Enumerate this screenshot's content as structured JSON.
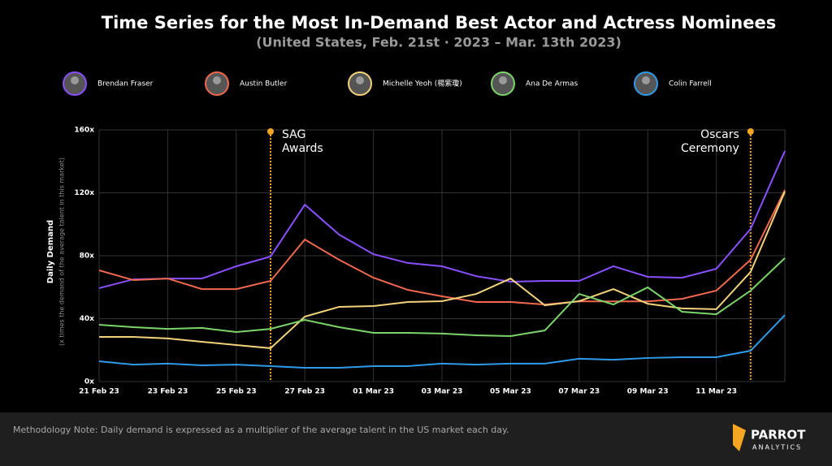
{
  "chart_data": {
    "type": "line",
    "title": "Time Series for the Most In-Demand Best Actor and Actress Nominees",
    "subtitle": "(United States, Feb. 21st · 2023 – Mar. 13th 2023)",
    "y_axis_label": "Daily Demand",
    "y_axis_sublabel": "(x times the demand of the average talent in this market)",
    "note": "Methodology Note: Daily demand is expressed as a multiplier of the average talent in the US market each day.",
    "brand": [
      "PARROT",
      "ANALYTICS"
    ],
    "categories": [
      "21 Feb 23",
      null,
      "23 Feb 23",
      null,
      "25 Feb 23",
      null,
      "27 Feb 23",
      null,
      "01 Mar 23",
      null,
      "03 Mar 23",
      null,
      "05 Mar 23",
      null,
      "07 Mar 23",
      null,
      "09 Mar 23",
      null,
      "11 Mar 23",
      null,
      null
    ],
    "ylim": [
      0,
      160
    ],
    "yticks": [
      {
        "value": 0,
        "label": "0x"
      },
      {
        "value": 40,
        "label": "40x"
      },
      {
        "value": 80,
        "label": "80x"
      },
      {
        "value": 120,
        "label": "120x"
      },
      {
        "value": 160,
        "label": "160x"
      }
    ],
    "grid": true,
    "annotations": [
      {
        "lines": [
          "SAG",
          "Awards"
        ],
        "x": 5,
        "align": "left"
      },
      {
        "lines": [
          "Oscars",
          "Ceremony"
        ],
        "x": 19,
        "align": "right"
      }
    ],
    "annotation_color": "#f5a623",
    "series": [
      {
        "name": "Brendan Fraser",
        "color": "#8a4fff",
        "values": [
          59.4,
          65,
          65.5,
          65.5,
          73.3,
          79.5,
          112.5,
          93.4,
          81,
          75.4,
          73.3,
          67,
          63.5,
          64,
          64,
          73.3,
          66.6,
          66,
          71.7,
          97,
          146.6
        ]
      },
      {
        "name": "Austin Butler",
        "color": "#f0694e",
        "values": [
          70.7,
          64.5,
          65.5,
          58.8,
          58.8,
          64,
          90.3,
          77.4,
          66,
          58.3,
          54.2,
          50.6,
          50.6,
          49,
          51,
          51,
          51,
          52.6,
          57.8,
          77.4,
          121.8
        ]
      },
      {
        "name": "Michelle Yeoh (楊紫瓊)",
        "color": "#f2d27a",
        "values": [
          28.4,
          28.4,
          27.4,
          25.3,
          23.2,
          21.2,
          41.3,
          47.5,
          48,
          50.6,
          51.1,
          55.7,
          65.5,
          48.5,
          51.1,
          58.8,
          49.5,
          46.5,
          46,
          69.7,
          120.8
        ]
      },
      {
        "name": "Ana De Armas",
        "color": "#7bd56a",
        "values": [
          36.1,
          34.6,
          33.5,
          34.1,
          31.5,
          33.5,
          39.2,
          34.6,
          31,
          31,
          30.5,
          29.4,
          28.9,
          32.5,
          55.7,
          49,
          59.9,
          44.4,
          42.8,
          57.8,
          78.5
        ]
      },
      {
        "name": "Colin Farrell",
        "color": "#2f9be8",
        "values": [
          12.9,
          10.8,
          11.4,
          10.3,
          10.8,
          9.8,
          8.8,
          8.8,
          9.8,
          9.8,
          11.4,
          10.8,
          11.4,
          11.4,
          14.5,
          13.9,
          15,
          15.5,
          15.5,
          19.6,
          42.3
        ]
      }
    ]
  }
}
